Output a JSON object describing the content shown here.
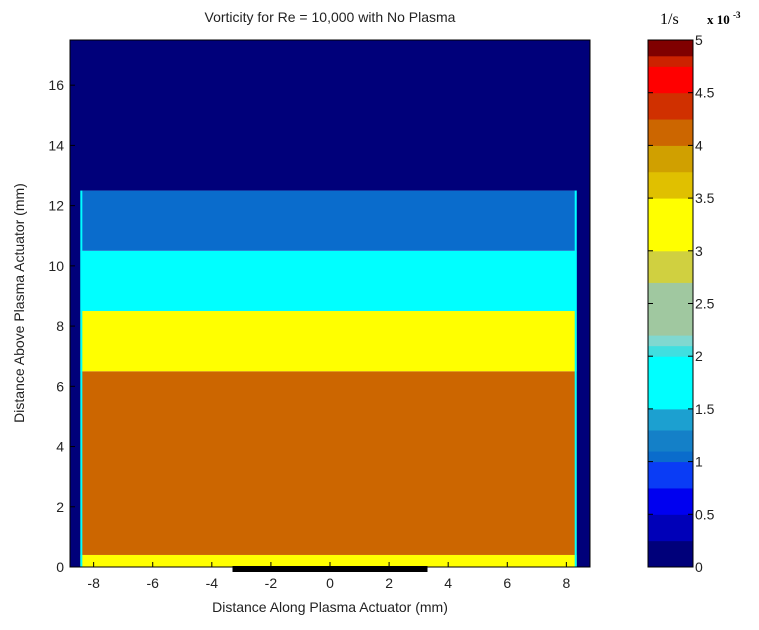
{
  "chart_data": {
    "type": "heatmap",
    "title": "Vorticity for Re = 10,000 with No Plasma",
    "xlabel": "Distance Along Plasma Actuator (mm)",
    "ylabel": "Distance Above Plasma Actuator (mm)",
    "xlim": [
      -8.8,
      8.8
    ],
    "ylim": [
      0,
      17.5
    ],
    "x_ticks": [
      -8,
      -6,
      -4,
      -2,
      0,
      2,
      4,
      6,
      8
    ],
    "y_ticks": [
      0,
      2,
      4,
      6,
      8,
      10,
      12,
      14,
      16
    ],
    "grid": false,
    "colorbar": {
      "unit_label": "1/s",
      "multiplier_base": "x 10",
      "multiplier_exponent": "-3",
      "range": [
        0,
        5
      ],
      "ticks": [
        0,
        0.5,
        1,
        1.5,
        2,
        2.5,
        3,
        3.5,
        4,
        4.5,
        5
      ],
      "levels": [
        {
          "from": 0.0,
          "to": 0.25,
          "color": "#00007a"
        },
        {
          "from": 0.25,
          "to": 0.5,
          "color": "#0000b8"
        },
        {
          "from": 0.5,
          "to": 0.75,
          "color": "#0000f0"
        },
        {
          "from": 0.75,
          "to": 1.0,
          "color": "#0a3cf5"
        },
        {
          "from": 1.0,
          "to": 1.1,
          "color": "#0a6ccc"
        },
        {
          "from": 1.1,
          "to": 1.3,
          "color": "#1480c8"
        },
        {
          "from": 1.3,
          "to": 1.5,
          "color": "#1ca0d0"
        },
        {
          "from": 1.5,
          "to": 2.0,
          "color": "#00ffff"
        },
        {
          "from": 2.0,
          "to": 2.1,
          "color": "#40dfe0"
        },
        {
          "from": 2.1,
          "to": 2.2,
          "color": "#80d8d0"
        },
        {
          "from": 2.2,
          "to": 2.7,
          "color": "#a0c8a0"
        },
        {
          "from": 2.7,
          "to": 3.0,
          "color": "#d0d040"
        },
        {
          "from": 3.0,
          "to": 3.5,
          "color": "#ffff00"
        },
        {
          "from": 3.5,
          "to": 3.75,
          "color": "#e0c000"
        },
        {
          "from": 3.75,
          "to": 4.0,
          "color": "#d0a000"
        },
        {
          "from": 4.0,
          "to": 4.25,
          "color": "#cc6600"
        },
        {
          "from": 4.25,
          "to": 4.5,
          "color": "#d03000"
        },
        {
          "from": 4.5,
          "to": 4.75,
          "color": "#ff0000"
        },
        {
          "from": 4.75,
          "to": 4.85,
          "color": "#cc2200"
        },
        {
          "from": 4.85,
          "to": 5.0,
          "color": "#800000"
        }
      ]
    },
    "field_bands": [
      {
        "y_from": 0.0,
        "y_to": 0.4,
        "level_color": "#ffff00"
      },
      {
        "y_from": 0.4,
        "y_to": 6.5,
        "level_color": "#cc6600"
      },
      {
        "y_from": 6.5,
        "y_to": 8.5,
        "level_color": "#ffff00"
      },
      {
        "y_from": 8.5,
        "y_to": 10.5,
        "level_color": "#00ffff"
      },
      {
        "y_from": 10.5,
        "y_to": 12.5,
        "level_color": "#0a6ccc"
      },
      {
        "y_from": 12.5,
        "y_to": 17.5,
        "level_color": "#00007a"
      }
    ],
    "actuator_electrodes": [
      {
        "x_from": -3.3,
        "x_to": 0.0
      },
      {
        "x_from": 0.0,
        "x_to": 3.3
      }
    ]
  }
}
